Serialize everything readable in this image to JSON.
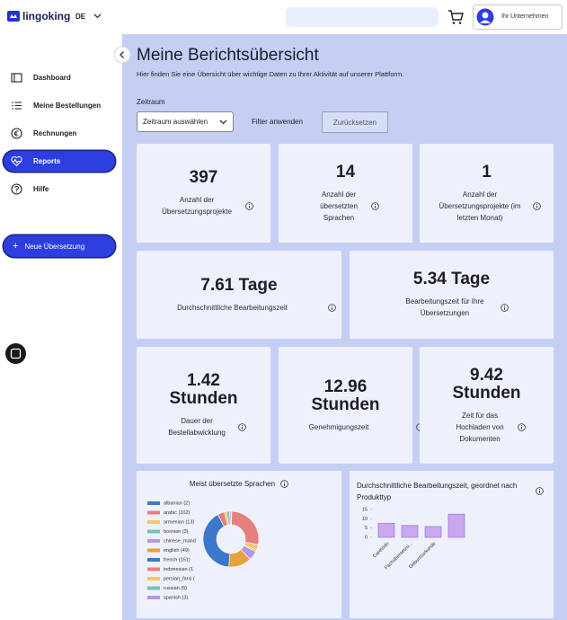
{
  "header": {
    "brand": "lingoking",
    "language": "DE",
    "account": "Ihr Unternehmen"
  },
  "sidebar": {
    "items": [
      "Dashboard",
      "Meine Bestellungen",
      "Rechnungen",
      "Reports",
      "Hilfe"
    ],
    "active": 3,
    "button": "Neue Übersetzung"
  },
  "page": {
    "title": "Meine Berichtsübersicht",
    "subtitle": "Hier finden Sie eine Übersicht über wichtige Daten zu Ihrer Aktivität auf unserer Plattform."
  },
  "filters": {
    "label": "Zeitraum",
    "select": "Zeitraum auswählen",
    "apply": "Filter anwenden",
    "reset": "Zurücksetzen"
  },
  "cards": [
    {
      "value": 397,
      "label": "Anzahl der Übersetzungsprojekte"
    },
    {
      "value": 14,
      "label": "Anzahl der übersetzten Sprachen"
    },
    {
      "value": 1,
      "label": "Anzahl der Übersetzungsprojekte (im letzten Monat)"
    },
    {
      "value": "7.61 Tage",
      "label": "Durchschnittliche Bearbeitungszeit"
    },
    {
      "value": "5.34 Tage",
      "label": "Bearbeitungszeit für Ihre Übersetzungen"
    },
    {
      "value": "1.42 Stunden",
      "label": "Dauer der Bestellabwicklung"
    },
    {
      "value": "12.96 Stunden",
      "label": "Genehmigungszeit"
    },
    {
      "value": "9.42 Stunden",
      "label": "Zeit für das Hochladen von Dokumenten"
    }
  ],
  "charts": [
    {
      "type": "pie",
      "title": "Meist übersetzte Sprachen",
      "categories": [
        "albanian (2)",
        "arabic (102)",
        "armenian (13)",
        "bosnian (3)",
        "chinese_mand",
        "english (49)",
        "french (151)",
        "indonesian (1",
        "persian_farsi (",
        "russian (6)",
        "spanish (3)"
      ],
      "values": [
        2,
        102,
        13,
        3,
        20,
        49,
        151,
        15,
        5,
        6,
        3
      ],
      "colors": [
        "#3b78c9",
        "#e58080",
        "#f2c86a",
        "#74c2b4",
        "#b597e3",
        "#e6a23c",
        "#3b78c9",
        "#e58080",
        "#f2c86a",
        "#74c2b4",
        "#b597e3"
      ]
    },
    {
      "type": "bar",
      "title": "Durchschnittliche Bearbeitungszeit, geordnet nach Produkttyp",
      "categories": [
        "Caretodo",
        "Fachübersetzu...",
        "Geburtsurkunde",
        null
      ],
      "values": [
        7.5,
        6.4,
        5.8,
        12.5
      ],
      "color": "#c9a8ef",
      "ylim": [
        0,
        15
      ],
      "yticks": [
        0,
        5,
        10,
        15
      ]
    }
  ]
}
